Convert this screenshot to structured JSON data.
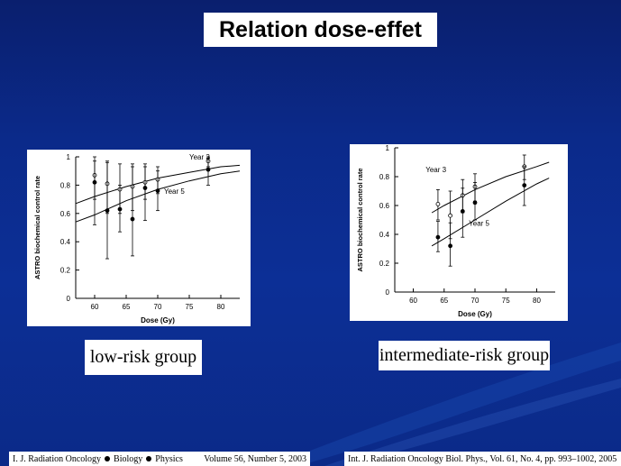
{
  "slide": {
    "title": "Relation dose-effet"
  },
  "captions": {
    "left": "low-risk group",
    "right": "intermediate-risk group"
  },
  "references": {
    "left_journal_parts": [
      "I. J. Radiation Oncology",
      "Biology",
      "Physics"
    ],
    "left_volume": "Volume 56, Number 5, 2003",
    "right": "Int. J. Radiation Oncology Biol. Phys., Vol. 61, No. 4, pp. 993–1002, 2005"
  },
  "colors": {
    "background": "#0b2a8a",
    "panel": "#ffffff"
  },
  "chart_data": [
    {
      "type": "scatter",
      "xlabel": "Dose (Gy)",
      "ylabel": "ASTRO biochemical control rate",
      "xlim": [
        57,
        83
      ],
      "ylim": [
        0,
        1
      ],
      "xticks": [
        "60",
        "65",
        "70",
        "75",
        "80"
      ],
      "xtick_values": [
        60,
        65,
        70,
        75,
        80
      ],
      "yticks": [
        "0",
        "0.2",
        "0.4",
        "0.6",
        "0.8",
        "1"
      ],
      "ytick_values": [
        0,
        0.2,
        0.4,
        0.6,
        0.8,
        1
      ],
      "series": [
        {
          "name": "Year 3",
          "marker": "open",
          "points": [
            {
              "x": 60,
              "y": 0.87,
              "lo": 0.7,
              "hi": 1.0
            },
            {
              "x": 62,
              "y": 0.81,
              "lo": 0.6,
              "hi": 0.97
            },
            {
              "x": 64,
              "y": 0.77,
              "lo": 0.6,
              "hi": 0.95
            },
            {
              "x": 66,
              "y": 0.79,
              "lo": 0.62,
              "hi": 0.93
            },
            {
              "x": 68,
              "y": 0.82,
              "lo": 0.7,
              "hi": 0.93
            },
            {
              "x": 70,
              "y": 0.84,
              "lo": 0.74,
              "hi": 0.93
            },
            {
              "x": 78,
              "y": 0.97,
              "lo": 0.93,
              "hi": 1.0
            }
          ],
          "curve": [
            [
              57,
              0.67
            ],
            [
              60,
              0.72
            ],
            [
              65,
              0.79
            ],
            [
              70,
              0.85
            ],
            [
              75,
              0.89
            ],
            [
              80,
              0.93
            ],
            [
              83,
              0.94
            ]
          ]
        },
        {
          "name": "Year 5",
          "marker": "filled",
          "points": [
            {
              "x": 60,
              "y": 0.82,
              "lo": 0.52,
              "hi": 0.97
            },
            {
              "x": 62,
              "y": 0.62,
              "lo": 0.28,
              "hi": 0.96
            },
            {
              "x": 64,
              "y": 0.63,
              "lo": 0.47,
              "hi": 0.8
            },
            {
              "x": 66,
              "y": 0.56,
              "lo": 0.3,
              "hi": 0.95
            },
            {
              "x": 68,
              "y": 0.78,
              "lo": 0.55,
              "hi": 0.95
            },
            {
              "x": 70,
              "y": 0.76,
              "lo": 0.62,
              "hi": 0.9
            },
            {
              "x": 78,
              "y": 0.91,
              "lo": 0.8,
              "hi": 0.99
            }
          ],
          "curve": [
            [
              57,
              0.54
            ],
            [
              60,
              0.59
            ],
            [
              65,
              0.69
            ],
            [
              70,
              0.77
            ],
            [
              75,
              0.83
            ],
            [
              80,
              0.88
            ],
            [
              83,
              0.9
            ]
          ]
        }
      ]
    },
    {
      "type": "scatter",
      "xlabel": "Dose (Gy)",
      "ylabel": "ASTRO biochemical control rate",
      "xlim": [
        57,
        83
      ],
      "ylim": [
        0,
        1
      ],
      "xticks": [
        "60",
        "65",
        "70",
        "75",
        "80"
      ],
      "xtick_values": [
        60,
        65,
        70,
        75,
        80
      ],
      "yticks": [
        "0",
        "0.2",
        "0.4",
        "0.6",
        "0.8",
        "1"
      ],
      "ytick_values": [
        0,
        0.2,
        0.4,
        0.6,
        0.8,
        1
      ],
      "series": [
        {
          "name": "Year 3",
          "marker": "open",
          "points": [
            {
              "x": 64,
              "y": 0.61,
              "lo": 0.5,
              "hi": 0.71
            },
            {
              "x": 66,
              "y": 0.53,
              "lo": 0.37,
              "hi": 0.7
            },
            {
              "x": 68,
              "y": 0.67,
              "lo": 0.55,
              "hi": 0.78
            },
            {
              "x": 70,
              "y": 0.73,
              "lo": 0.63,
              "hi": 0.82
            },
            {
              "x": 78,
              "y": 0.87,
              "lo": 0.78,
              "hi": 0.95
            }
          ],
          "curve": [
            [
              63,
              0.55
            ],
            [
              65,
              0.6
            ],
            [
              70,
              0.71
            ],
            [
              75,
              0.8
            ],
            [
              80,
              0.87
            ],
            [
              82,
              0.9
            ]
          ]
        },
        {
          "name": "Year 5",
          "marker": "filled",
          "points": [
            {
              "x": 64,
              "y": 0.38,
              "lo": 0.28,
              "hi": 0.49
            },
            {
              "x": 66,
              "y": 0.32,
              "lo": 0.18,
              "hi": 0.48
            },
            {
              "x": 68,
              "y": 0.56,
              "lo": 0.38,
              "hi": 0.72
            },
            {
              "x": 70,
              "y": 0.62,
              "lo": 0.5,
              "hi": 0.76
            },
            {
              "x": 78,
              "y": 0.74,
              "lo": 0.6,
              "hi": 0.87
            }
          ],
          "curve": [
            [
              63,
              0.32
            ],
            [
              65,
              0.37
            ],
            [
              70,
              0.5
            ],
            [
              75,
              0.63
            ],
            [
              80,
              0.75
            ],
            [
              82,
              0.79
            ]
          ]
        }
      ]
    }
  ]
}
